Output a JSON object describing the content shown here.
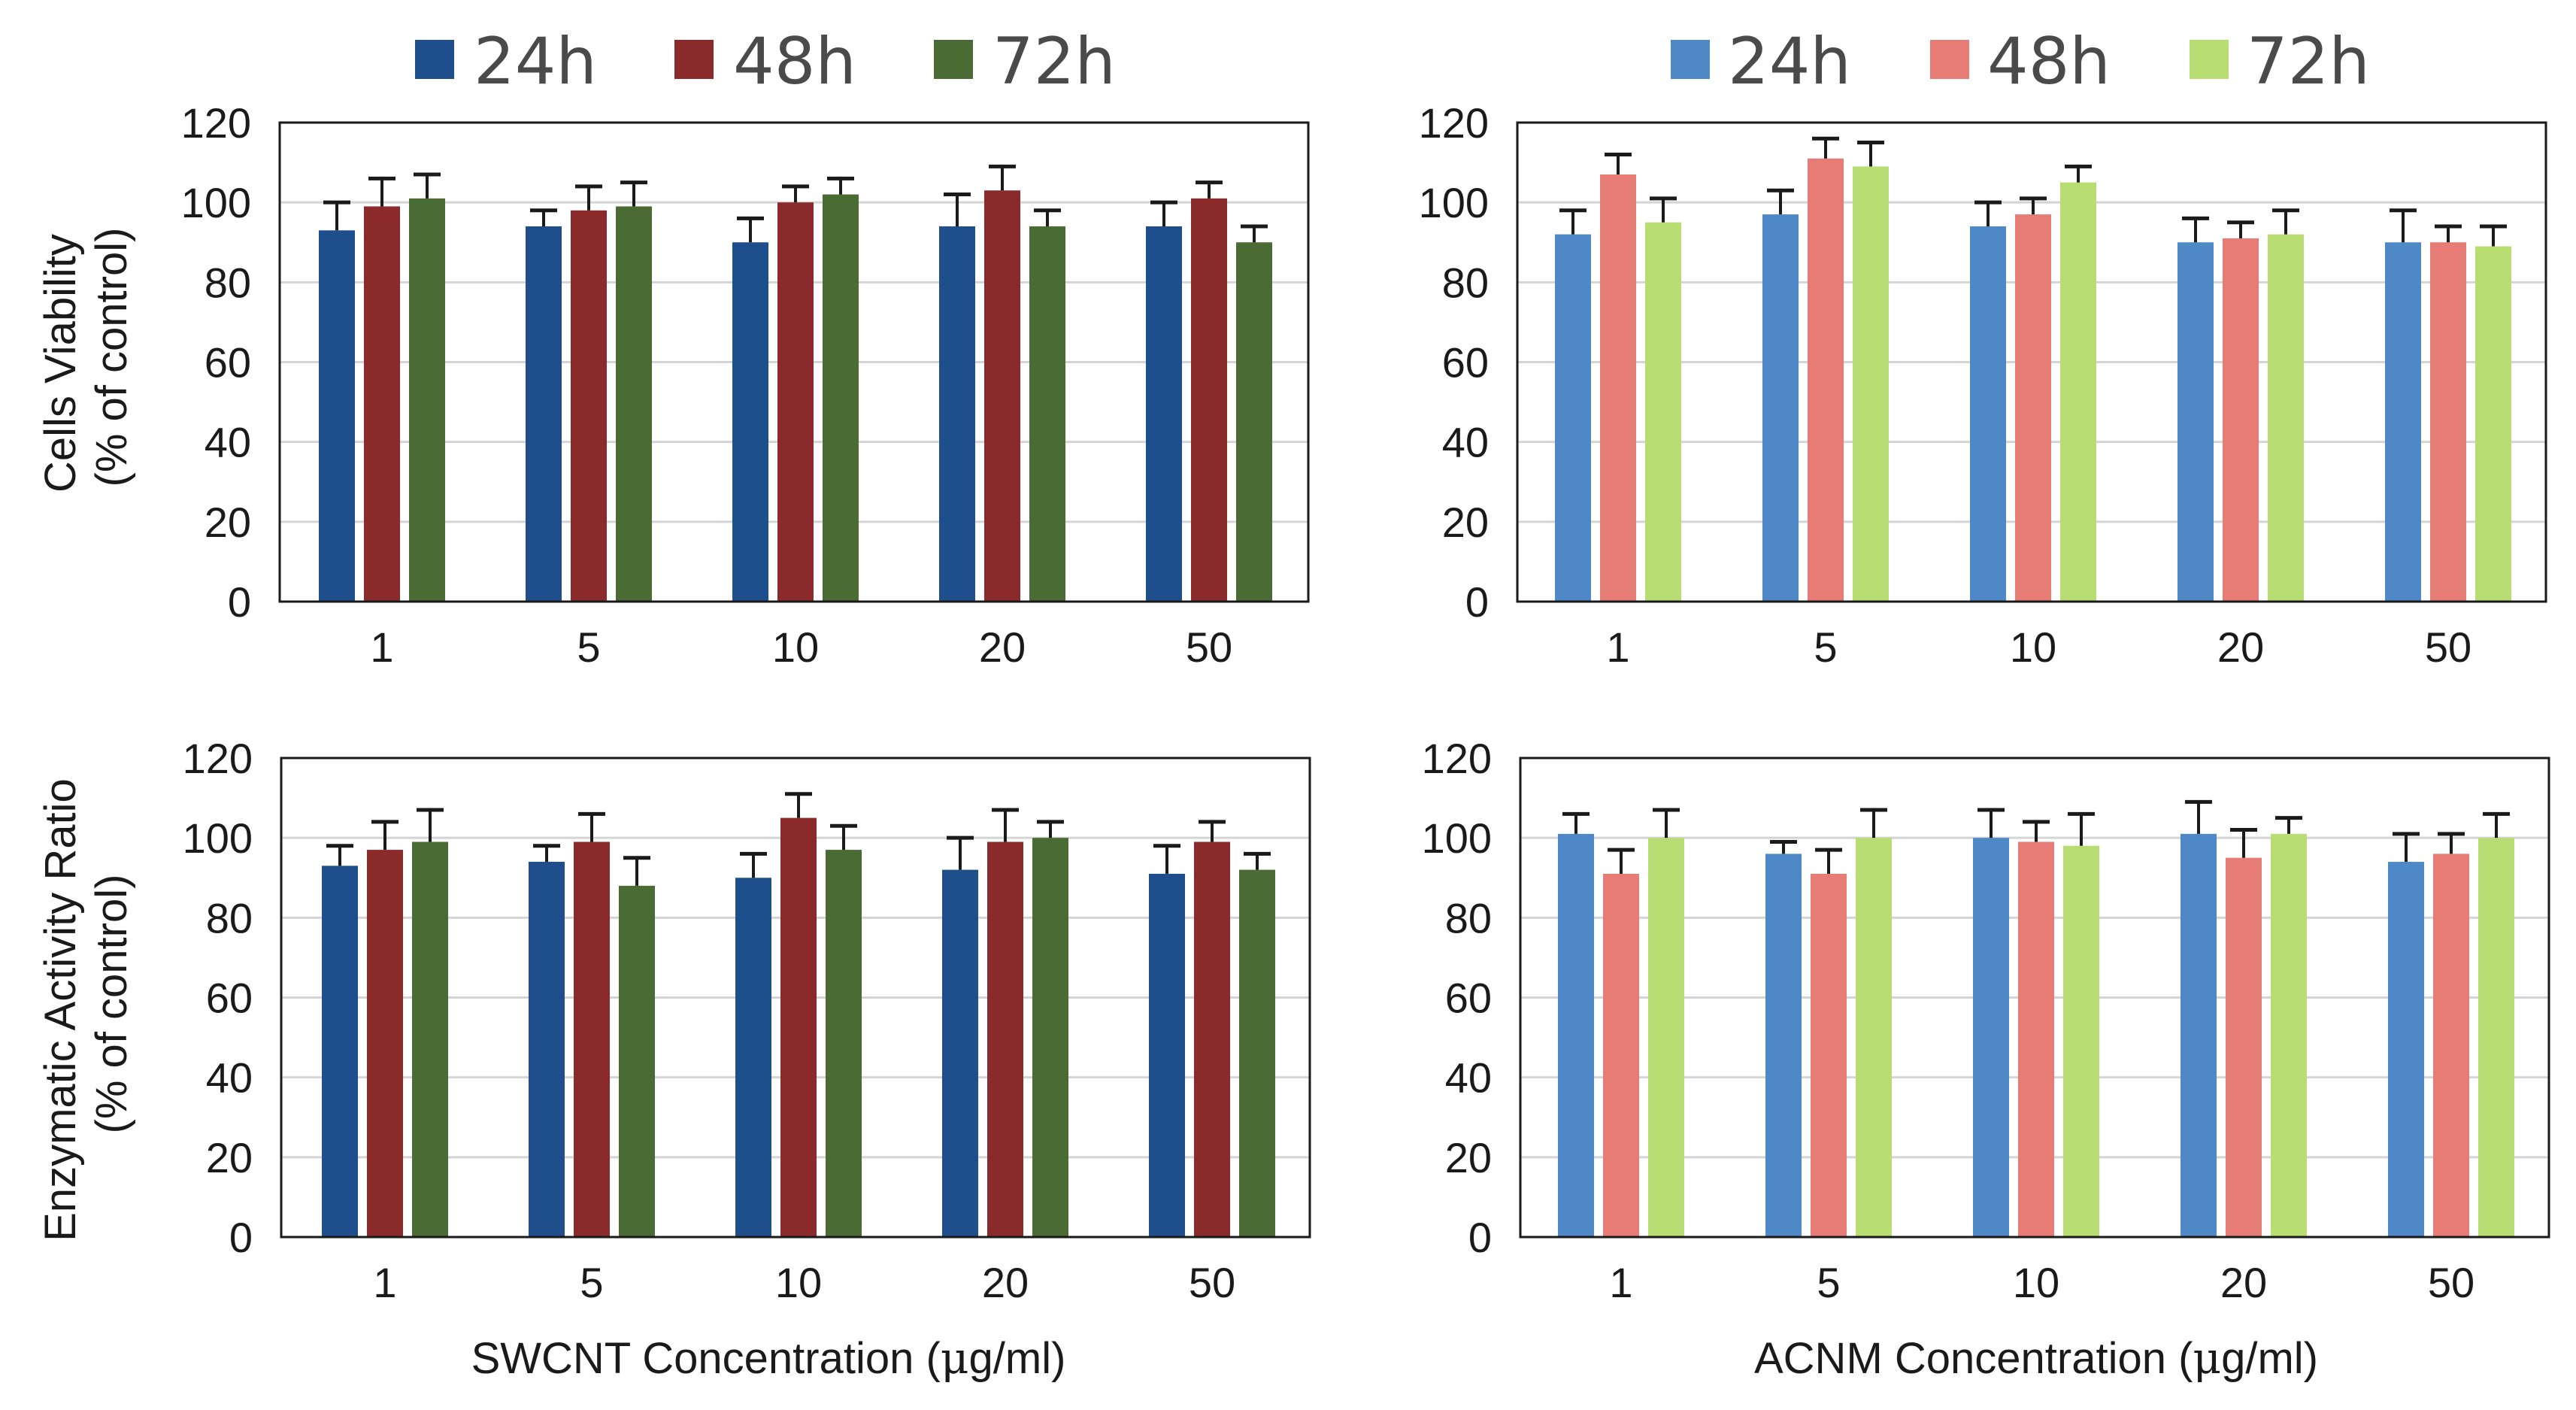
{
  "figure": {
    "ylabel_top": [
      "Cells Viability",
      "(% of control)"
    ],
    "ylabel_bottom": [
      "Enzymatic Activity Ratio",
      "(% of control)"
    ],
    "xlabel_left_prefix": "SWCNT Concentration (",
    "xlabel_right_prefix": "ACNM Concentration (",
    "xlabel_unit_mu": "μ",
    "xlabel_unit_rest": "g/ml)"
  },
  "legends": [
    {
      "entries": [
        {
          "label": "24h",
          "color": "#1f4e8c"
        },
        {
          "label": "48h",
          "color": "#8b2a2a"
        },
        {
          "label": "72h",
          "color": "#4a6b34"
        }
      ]
    },
    {
      "entries": [
        {
          "label": "24h",
          "color": "#4f88c6"
        },
        {
          "label": "48h",
          "color": "#e77b76"
        },
        {
          "label": "72h",
          "color": "#b8dd72"
        }
      ]
    }
  ],
  "chart_data": [
    {
      "type": "bar",
      "panel": "top-left",
      "title": "",
      "ylabel": "Cells Viability (% of control)",
      "xlabel": "",
      "categories": [
        "1",
        "5",
        "10",
        "20",
        "50"
      ],
      "ylim": [
        0,
        120
      ],
      "yticks": [
        "0",
        "20",
        "40",
        "60",
        "80",
        "100",
        "120"
      ],
      "grid": true,
      "series": [
        {
          "name": "24h",
          "color": "#1f4e8c",
          "values": [
            93,
            94,
            90,
            94,
            94
          ],
          "errors": [
            7,
            4,
            6,
            8,
            6
          ]
        },
        {
          "name": "48h",
          "color": "#8b2a2a",
          "values": [
            99,
            98,
            100,
            103,
            101
          ],
          "errors": [
            7,
            6,
            4,
            6,
            4
          ]
        },
        {
          "name": "72h",
          "color": "#4a6b34",
          "values": [
            101,
            99,
            102,
            94,
            90
          ],
          "errors": [
            6,
            6,
            4,
            4,
            4
          ]
        }
      ]
    },
    {
      "type": "bar",
      "panel": "top-right",
      "title": "",
      "ylabel": "",
      "xlabel": "",
      "categories": [
        "1",
        "5",
        "10",
        "20",
        "50"
      ],
      "ylim": [
        0,
        120
      ],
      "yticks": [
        "0",
        "20",
        "40",
        "60",
        "80",
        "100",
        "120"
      ],
      "grid": true,
      "series": [
        {
          "name": "24h",
          "color": "#4f88c6",
          "values": [
            92,
            97,
            94,
            90,
            90
          ],
          "errors": [
            6,
            6,
            6,
            6,
            8
          ]
        },
        {
          "name": "48h",
          "color": "#e77b76",
          "values": [
            107,
            111,
            97,
            91,
            90
          ],
          "errors": [
            5,
            5,
            4,
            4,
            4
          ]
        },
        {
          "name": "72h",
          "color": "#b8dd72",
          "values": [
            95,
            109,
            105,
            92,
            89
          ],
          "errors": [
            6,
            6,
            4,
            6,
            5
          ]
        }
      ]
    },
    {
      "type": "bar",
      "panel": "bottom-left",
      "title": "",
      "ylabel": "Enzymatic Activity Ratio (% of control)",
      "xlabel": "SWCNT Concentration (μg/ml)",
      "categories": [
        "1",
        "5",
        "10",
        "20",
        "50"
      ],
      "ylim": [
        0,
        120
      ],
      "yticks": [
        "0",
        "20",
        "40",
        "60",
        "80",
        "100",
        "120"
      ],
      "grid": true,
      "series": [
        {
          "name": "24h",
          "color": "#1f4e8c",
          "values": [
            93,
            94,
            90,
            92,
            91
          ],
          "errors": [
            5,
            4,
            6,
            8,
            7
          ]
        },
        {
          "name": "48h",
          "color": "#8b2a2a",
          "values": [
            97,
            99,
            105,
            99,
            99
          ],
          "errors": [
            7,
            7,
            6,
            8,
            5
          ]
        },
        {
          "name": "72h",
          "color": "#4a6b34",
          "values": [
            99,
            88,
            97,
            100,
            92
          ],
          "errors": [
            8,
            7,
            6,
            4,
            4
          ]
        }
      ]
    },
    {
      "type": "bar",
      "panel": "bottom-right",
      "title": "",
      "ylabel": "",
      "xlabel": "ACNM Concentration (μg/ml)",
      "categories": [
        "1",
        "5",
        "10",
        "20",
        "50"
      ],
      "ylim": [
        0,
        120
      ],
      "yticks": [
        "0",
        "20",
        "40",
        "60",
        "80",
        "100",
        "120"
      ],
      "grid": true,
      "series": [
        {
          "name": "24h",
          "color": "#4f88c6",
          "values": [
            101,
            96,
            100,
            101,
            94
          ],
          "errors": [
            5,
            3,
            7,
            8,
            7
          ]
        },
        {
          "name": "48h",
          "color": "#e77b76",
          "values": [
            91,
            91,
            99,
            95,
            96
          ],
          "errors": [
            6,
            6,
            5,
            7,
            5
          ]
        },
        {
          "name": "72h",
          "color": "#b8dd72",
          "values": [
            100,
            100,
            98,
            101,
            100
          ],
          "errors": [
            7,
            7,
            8,
            4,
            6
          ]
        }
      ]
    }
  ]
}
